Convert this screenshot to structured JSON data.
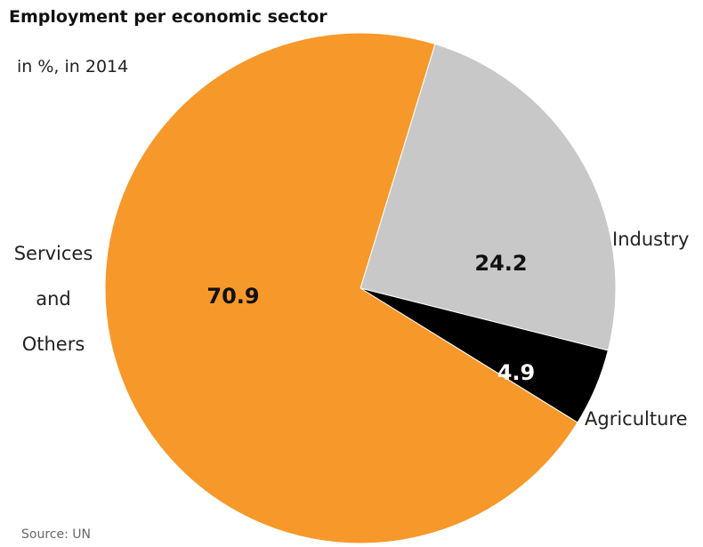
{
  "title": "Employment per economic sector",
  "subtitle": "in %, in 2014",
  "source": "Source: UN",
  "chart_data": {
    "type": "pie",
    "title": "Employment per economic sector",
    "subtitle": "in %, in 2014",
    "slices": [
      {
        "label": "Industry",
        "value": 24.2,
        "color": "#c8c8c8",
        "value_color": "#111111"
      },
      {
        "label": "Agriculture",
        "value": 4.9,
        "color": "#000000",
        "value_color": "#ffffff"
      },
      {
        "label": "Services and Others",
        "label_lines": [
          "Services",
          "and",
          "Others"
        ],
        "value": 70.9,
        "color": "#f7982a",
        "value_color": "#111111"
      }
    ],
    "start_angle_deg": 17,
    "direction": "clockwise",
    "source": "Source: UN"
  }
}
